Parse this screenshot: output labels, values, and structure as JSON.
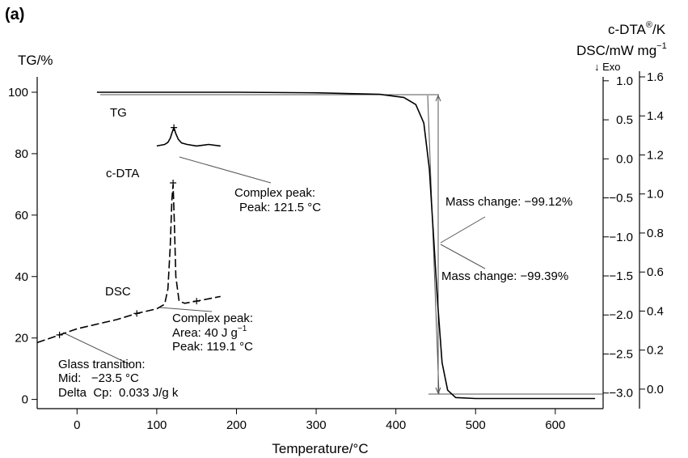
{
  "chart_data": {
    "type": "line",
    "panel_label": "(a)",
    "xlabel": "Temperature/°C",
    "xlim": [
      -50,
      660
    ],
    "x_ticks": [
      0,
      100,
      200,
      300,
      400,
      500,
      600
    ],
    "y_left": {
      "label": "TG/%",
      "ylim": [
        -3,
        105
      ],
      "ticks": [
        0,
        20,
        40,
        60,
        80,
        100
      ]
    },
    "y_right_1": {
      "label_base": "c-DTA",
      "label_sup": "®",
      "label_unit": "/K",
      "ylim": [
        -3.2,
        1.05
      ],
      "ticks": [
        1.0,
        0.5,
        0.0,
        -0.5,
        -1.0,
        -1.5,
        -2.0,
        -2.5,
        -3.0
      ],
      "tick_labels": [
        "1.0",
        "0.5",
        "0.0",
        "−0.5",
        "−1.0",
        "−1.5",
        "−2.0",
        "−2.5",
        "−3.0"
      ]
    },
    "y_right_2": {
      "label_base": "DSC/mW mg",
      "label_sup": "−1",
      "exo": "↓ Exo",
      "ylim": [
        -0.1,
        1.6
      ],
      "ticks": [
        1.6,
        1.4,
        1.2,
        1.0,
        0.8,
        0.6,
        0.4,
        0.2,
        0.0
      ],
      "tick_labels": [
        "1.6",
        "1.4",
        "1.2",
        "1.0",
        "0.8",
        "0.6",
        "0.4",
        "0.2",
        "0.0"
      ]
    },
    "series": [
      {
        "name": "TG",
        "style": "solid",
        "x": [
          25,
          100,
          200,
          300,
          380,
          410,
          425,
          435,
          442,
          448,
          452,
          458,
          465,
          475,
          500,
          600,
          650
        ],
        "y": [
          100,
          100,
          100,
          99.8,
          99.3,
          98.3,
          96,
          90,
          75,
          50,
          33,
          12,
          3,
          0.6,
          0.3,
          0.3,
          0.3
        ]
      },
      {
        "name": "c-DTA",
        "style": "solid",
        "x": [
          100,
          110,
          114,
          117,
          119,
          121.5,
          124,
          127,
          131,
          138,
          150,
          165,
          180
        ],
        "y": [
          82.5,
          83,
          83.7,
          85,
          86.7,
          88.5,
          86.5,
          84.7,
          83.5,
          83,
          82.5,
          83,
          82.5
        ]
      },
      {
        "name": "DSC",
        "style": "dashed",
        "x": [
          -50,
          -22,
          0,
          50,
          75,
          100,
          110,
          114,
          117,
          119,
          120.5,
          122,
          124,
          128,
          135,
          150,
          180
        ],
        "y": [
          18.5,
          21,
          23,
          26,
          28,
          29.5,
          31,
          36,
          50,
          65,
          70,
          58,
          40,
          32,
          31.3,
          32,
          33.5
        ]
      }
    ],
    "markers": [
      {
        "x": 121.5,
        "y": 88.5
      },
      {
        "x": 120.5,
        "y": 70.5
      },
      {
        "x": -22,
        "y": 21
      },
      {
        "x": 75,
        "y": 28
      },
      {
        "x": 150,
        "y": 32
      }
    ],
    "annotations": {
      "tg_label": "TG",
      "cdta_label": "c-DTA",
      "dsc_label": "DSC",
      "cdta_peak_title": "Complex peak:",
      "cdta_peak_value": "Peak: 121.5 °C",
      "dsc_peak_title": "Complex peak:",
      "dsc_peak_area": "Area: 40 J g",
      "dsc_peak_area_sup": "−1",
      "dsc_peak_value": "Peak: 119.1 °C",
      "glass_title": "Glass transition:",
      "glass_mid": "Mid:   −23.5 °C",
      "glass_delta": "Delta  Cp:  0.033 J/g k",
      "mass_change_1": "Mass change: −99.12%",
      "mass_change_2": "Mass change: −99.39%"
    },
    "grid": false,
    "legend": "none"
  }
}
